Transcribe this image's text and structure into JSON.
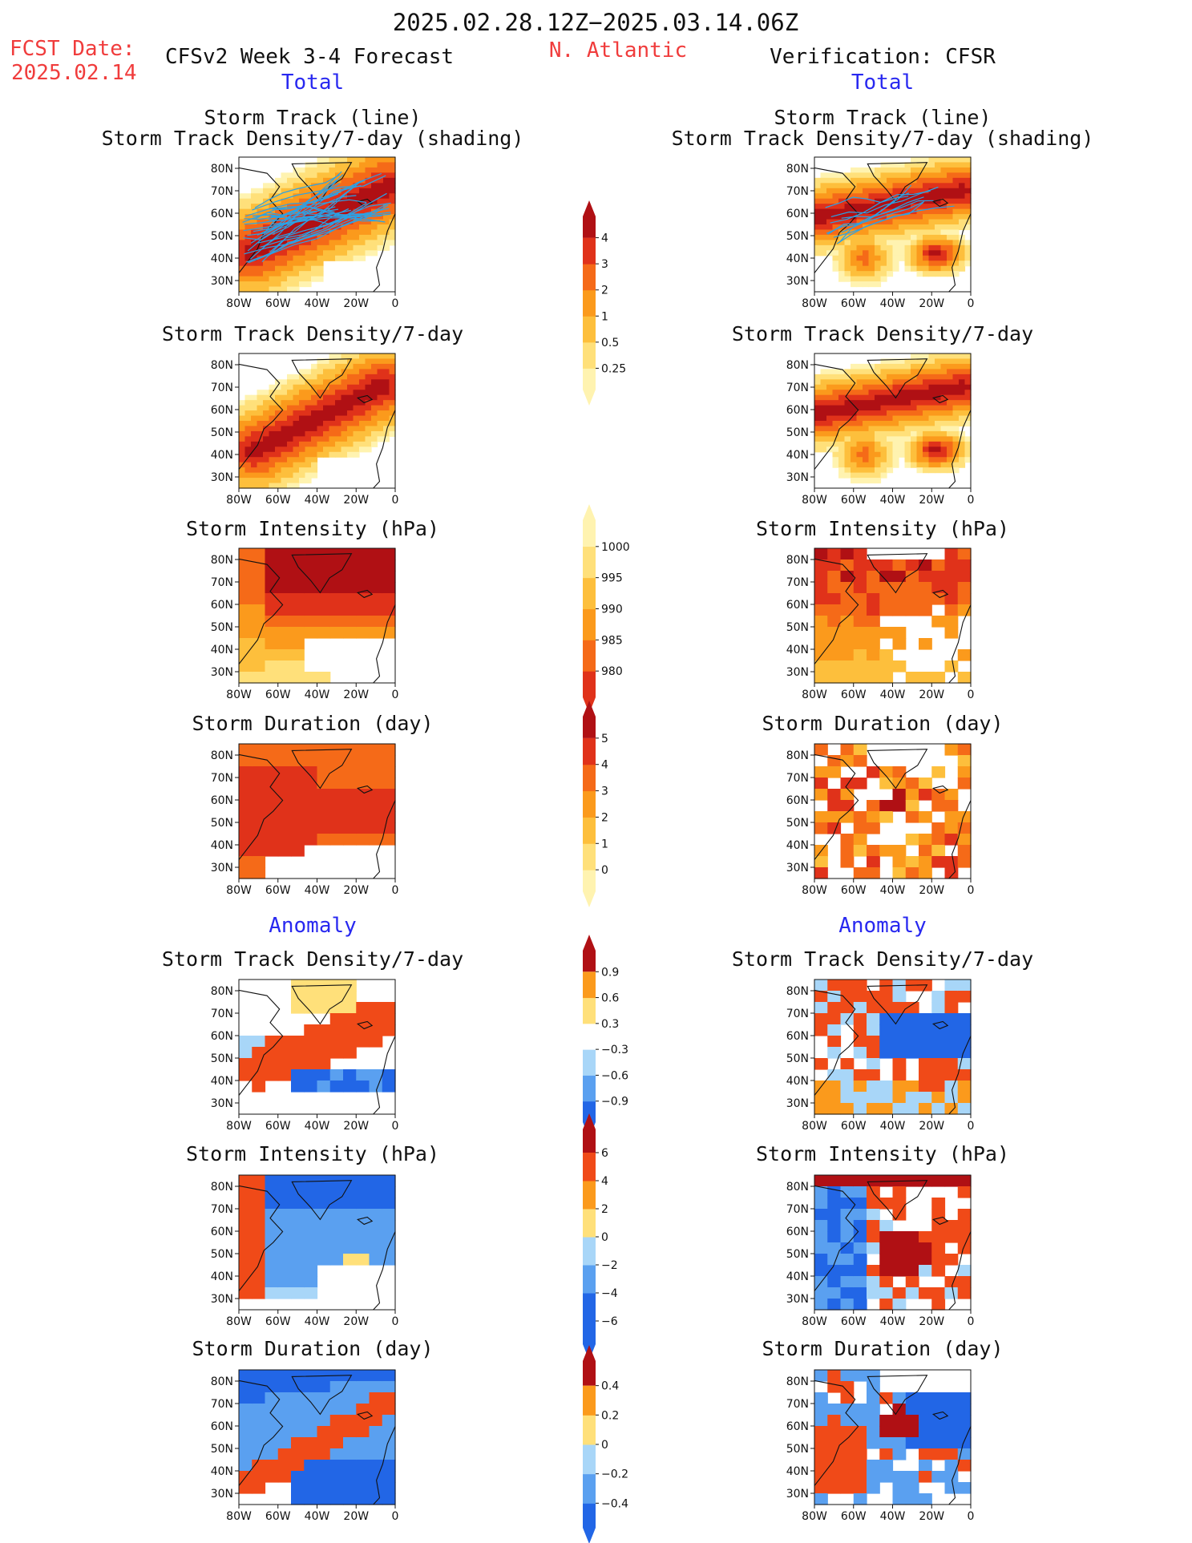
{
  "header": {
    "period": "2025.02.28.12Z−2025.03.14.06Z",
    "fcst_label": "FCST Date:",
    "fcst_date": "2025.02.14",
    "model_label": "CFSv2 Week 3-4 Forecast",
    "region": "N. Atlantic",
    "verification_label": "Verification: CFSR"
  },
  "sections": {
    "total_left": "Total",
    "total_right": "Total",
    "anomaly_left": "Anomaly",
    "anomaly_right": "Anomaly"
  },
  "panel_titles": {
    "track_line": "Storm Track (line)",
    "track_shading": "Storm Track Density/7-day (shading)",
    "density": "Storm Track Density/7-day",
    "intensity": "Storm Intensity (hPa)",
    "duration": "Storm Duration (day)"
  },
  "colors": {
    "title_red": "#f03c3c",
    "section_blue": "#2828f0",
    "track_line": "#2aa2e6",
    "land_edge": "#111111",
    "warm_scale": [
      "#fff3b0",
      "#ffe07a",
      "#fdbf3c",
      "#fb9a1c",
      "#f56a18",
      "#e0321a",
      "#b01014"
    ],
    "anomaly_scale": [
      "#2266e6",
      "#5aa0f0",
      "#a8d6f8",
      "#ffffff",
      "#ffe07a",
      "#fb9a1c",
      "#f04a18",
      "#b01014"
    ]
  },
  "chart_data": [
    {
      "type": "heatmap",
      "id": "fcst-total-track",
      "model": "CFSv2",
      "title": "Storm Track (line) / Storm Track Density/7-day (shading)",
      "x_ticks": [
        "80W",
        "60W",
        "40W",
        "20W",
        "0"
      ],
      "y_ticks": [
        "30N",
        "40N",
        "50N",
        "60N",
        "70N",
        "80N"
      ],
      "xlim": [
        -80,
        0
      ],
      "ylim": [
        25,
        85
      ]
    },
    {
      "type": "heatmap",
      "id": "cfsr-total-track",
      "model": "CFSR",
      "title": "Storm Track (line) / Storm Track Density/7-day (shading)",
      "x_ticks": [
        "80W",
        "60W",
        "40W",
        "20W",
        "0"
      ],
      "y_ticks": [
        "30N",
        "40N",
        "50N",
        "60N",
        "70N",
        "80N"
      ],
      "xlim": [
        -80,
        0
      ],
      "ylim": [
        25,
        85
      ]
    },
    {
      "type": "heatmap",
      "id": "fcst-total-density",
      "title": "Storm Track Density/7-day",
      "x_ticks": [
        "80W",
        "60W",
        "40W",
        "20W",
        "0"
      ],
      "y_ticks": [
        "30N",
        "40N",
        "50N",
        "60N",
        "70N",
        "80N"
      ],
      "xlim": [
        -80,
        0
      ],
      "ylim": [
        25,
        85
      ]
    },
    {
      "type": "heatmap",
      "id": "cfsr-total-density",
      "title": "Storm Track Density/7-day",
      "x_ticks": [
        "80W",
        "60W",
        "40W",
        "20W",
        "0"
      ],
      "y_ticks": [
        "30N",
        "40N",
        "50N",
        "60N",
        "70N",
        "80N"
      ],
      "xlim": [
        -80,
        0
      ],
      "ylim": [
        25,
        85
      ]
    },
    {
      "type": "heatmap",
      "id": "fcst-total-intensity",
      "title": "Storm Intensity (hPa)",
      "x_ticks": [
        "80W",
        "60W",
        "40W",
        "20W",
        "0"
      ],
      "y_ticks": [
        "30N",
        "40N",
        "50N",
        "60N",
        "70N",
        "80N"
      ],
      "xlim": [
        -80,
        0
      ],
      "ylim": [
        25,
        85
      ]
    },
    {
      "type": "heatmap",
      "id": "cfsr-total-intensity",
      "title": "Storm Intensity (hPa)",
      "x_ticks": [
        "80W",
        "60W",
        "40W",
        "20W",
        "0"
      ],
      "y_ticks": [
        "30N",
        "40N",
        "50N",
        "60N",
        "70N",
        "80N"
      ],
      "xlim": [
        -80,
        0
      ],
      "ylim": [
        25,
        85
      ]
    },
    {
      "type": "heatmap",
      "id": "fcst-total-duration",
      "title": "Storm Duration (day)",
      "x_ticks": [
        "80W",
        "60W",
        "40W",
        "20W",
        "0"
      ],
      "y_ticks": [
        "30N",
        "40N",
        "50N",
        "60N",
        "70N",
        "80N"
      ],
      "xlim": [
        -80,
        0
      ],
      "ylim": [
        25,
        85
      ]
    },
    {
      "type": "heatmap",
      "id": "cfsr-total-duration",
      "title": "Storm Duration (day)",
      "x_ticks": [
        "80W",
        "60W",
        "40W",
        "20W",
        "0"
      ],
      "y_ticks": [
        "30N",
        "40N",
        "50N",
        "60N",
        "70N",
        "80N"
      ],
      "xlim": [
        -80,
        0
      ],
      "ylim": [
        25,
        85
      ]
    },
    {
      "type": "heatmap",
      "id": "fcst-anom-density",
      "title": "Storm Track Density/7-day",
      "x_ticks": [
        "80W",
        "60W",
        "40W",
        "20W",
        "0"
      ],
      "y_ticks": [
        "30N",
        "40N",
        "50N",
        "60N",
        "70N",
        "80N"
      ],
      "xlim": [
        -80,
        0
      ],
      "ylim": [
        25,
        85
      ]
    },
    {
      "type": "heatmap",
      "id": "cfsr-anom-density",
      "title": "Storm Track Density/7-day",
      "x_ticks": [
        "80W",
        "60W",
        "40W",
        "20W",
        "0"
      ],
      "y_ticks": [
        "30N",
        "40N",
        "50N",
        "60N",
        "70N",
        "80N"
      ],
      "xlim": [
        -80,
        0
      ],
      "ylim": [
        25,
        85
      ]
    },
    {
      "type": "heatmap",
      "id": "fcst-anom-intensity",
      "title": "Storm Intensity (hPa)",
      "x_ticks": [
        "80W",
        "60W",
        "40W",
        "20W",
        "0"
      ],
      "y_ticks": [
        "30N",
        "40N",
        "50N",
        "60N",
        "70N",
        "80N"
      ],
      "xlim": [
        -80,
        0
      ],
      "ylim": [
        25,
        85
      ]
    },
    {
      "type": "heatmap",
      "id": "cfsr-anom-intensity",
      "title": "Storm Intensity (hPa)",
      "x_ticks": [
        "80W",
        "60W",
        "40W",
        "20W",
        "0"
      ],
      "y_ticks": [
        "30N",
        "40N",
        "50N",
        "60N",
        "70N",
        "80N"
      ],
      "xlim": [
        -80,
        0
      ],
      "ylim": [
        25,
        85
      ]
    },
    {
      "type": "heatmap",
      "id": "fcst-anom-duration",
      "title": "Storm Duration (day)",
      "x_ticks": [
        "80W",
        "60W",
        "40W",
        "20W",
        "0"
      ],
      "y_ticks": [
        "30N",
        "40N",
        "50N",
        "60N",
        "70N",
        "80N"
      ],
      "xlim": [
        -80,
        0
      ],
      "ylim": [
        25,
        85
      ]
    },
    {
      "type": "heatmap",
      "id": "cfsr-anom-duration",
      "title": "Storm Duration (day)",
      "x_ticks": [
        "80W",
        "60W",
        "40W",
        "20W",
        "0"
      ],
      "y_ticks": [
        "30N",
        "40N",
        "50N",
        "60N",
        "70N",
        "80N"
      ],
      "xlim": [
        -80,
        0
      ],
      "ylim": [
        25,
        85
      ]
    }
  ],
  "colorbars": [
    {
      "id": "density-total",
      "labels": [
        "0.25",
        "0.5",
        "1",
        "2",
        "3",
        "4"
      ],
      "scale": "warm"
    },
    {
      "id": "intensity-total",
      "labels": [
        "980",
        "985",
        "990",
        "995",
        "1000"
      ],
      "scale": "warm_reversed"
    },
    {
      "id": "duration-total",
      "labels": [
        "0",
        "1",
        "2",
        "3",
        "4",
        "5"
      ],
      "scale": "warm"
    },
    {
      "id": "density-anom",
      "labels": [
        "−0.9",
        "−0.6",
        "−0.3",
        "0.3",
        "0.6",
        "0.9"
      ],
      "scale": "anomaly"
    },
    {
      "id": "intensity-anom",
      "labels": [
        "−6",
        "−4",
        "−2",
        "0",
        "2",
        "4",
        "6"
      ],
      "scale": "anomaly"
    },
    {
      "id": "duration-anom",
      "labels": [
        "−0.4",
        "−0.2",
        "0",
        "0.2",
        "0.4"
      ],
      "scale": "anomaly"
    }
  ]
}
